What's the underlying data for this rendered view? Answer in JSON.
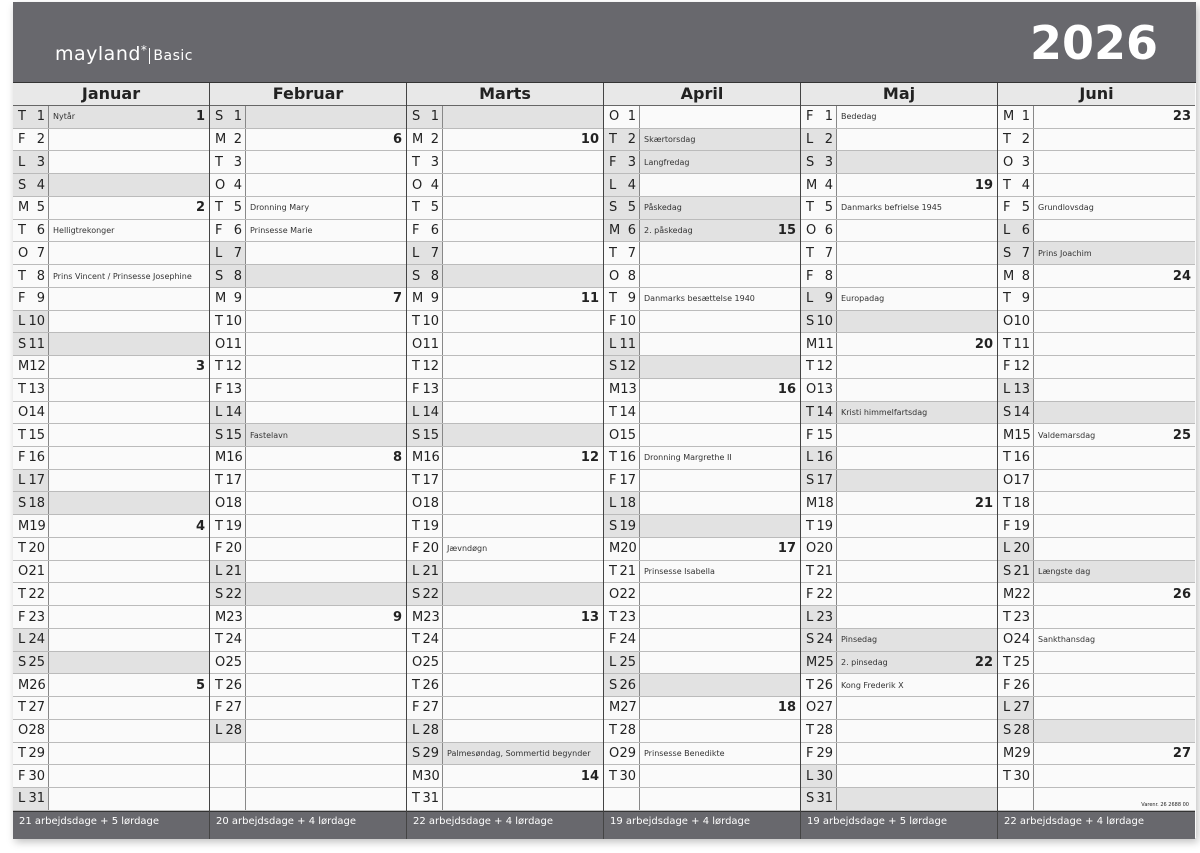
{
  "brand": {
    "logo": "mayland",
    "logo_mark": "*",
    "sub": "Basic"
  },
  "year": "2026",
  "varenr": "Varenr. 26 2688 00",
  "months": [
    {
      "name": "Januar",
      "footer": "21 arbejdsdage + 5 lørdage",
      "first": 3,
      "len": 31,
      "notes": {
        "1": "Nytår",
        "6": "Helligtrekonger",
        "8": "Prins Vincent / Prinsesse Josephine"
      },
      "weeks": {
        "1": "1",
        "5": "2",
        "12": "3",
        "19": "4",
        "26": "5"
      },
      "holidays": [
        1
      ]
    },
    {
      "name": "Februar",
      "footer": "20 arbejdsdage + 4 lørdage",
      "first": 6,
      "len": 28,
      "notes": {
        "5": "Dronning Mary",
        "6": "Prinsesse Marie",
        "15": "Fastelavn"
      },
      "weeks": {
        "2": "6",
        "9": "7",
        "16": "8",
        "23": "9"
      },
      "holidays": []
    },
    {
      "name": "Marts",
      "footer": "22 arbejdsdage + 4 lørdage",
      "first": 6,
      "len": 31,
      "notes": {
        "20": "Jævndøgn",
        "29": "Palmesøndag, Sommertid begynder"
      },
      "weeks": {
        "2": "10",
        "9": "11",
        "16": "12",
        "23": "13",
        "30": "14"
      },
      "holidays": []
    },
    {
      "name": "April",
      "footer": "19 arbejdsdage + 4 lørdage",
      "first": 2,
      "len": 30,
      "notes": {
        "2": "Skærtorsdag",
        "3": "Langfredag",
        "5": "Påskedag",
        "6": "2. påskedag",
        "9": "Danmarks besættelse 1940",
        "16": "Dronning Margrethe II",
        "21": "Prinsesse Isabella",
        "29": "Prinsesse Benedikte"
      },
      "weeks": {
        "6": "15",
        "13": "16",
        "20": "17",
        "27": "18"
      },
      "holidays": [
        2,
        3,
        5,
        6
      ]
    },
    {
      "name": "Maj",
      "footer": "19 arbejdsdage + 5 lørdage",
      "first": 4,
      "len": 31,
      "notes": {
        "1": "Bededag",
        "5": "Danmarks befrielse 1945",
        "9": "Europadag",
        "14": "Kristi himmelfartsdag",
        "24": "Pinsedag",
        "25": "2. pinsedag",
        "26": "Kong Frederik X"
      },
      "weeks": {
        "4": "19",
        "11": "20",
        "18": "21",
        "25": "22"
      },
      "holidays": [
        14,
        24,
        25
      ]
    },
    {
      "name": "Juni",
      "footer": "22 arbejdsdage + 4 lørdage",
      "first": 0,
      "len": 30,
      "notes": {
        "5": "Grundlovsdag",
        "7": "Prins Joachim",
        "15": "Valdemarsdag",
        "21": "Længste dag",
        "24": "Sankthansdag"
      },
      "weeks": {
        "1": "23",
        "8": "24",
        "15": "25",
        "22": "26",
        "29": "27"
      },
      "holidays": []
    }
  ],
  "weekday_letters": [
    "M",
    "T",
    "O",
    "T",
    "F",
    "L",
    "S"
  ],
  "colors": {
    "header": "#68686d",
    "shade": "#e2e2e2"
  }
}
